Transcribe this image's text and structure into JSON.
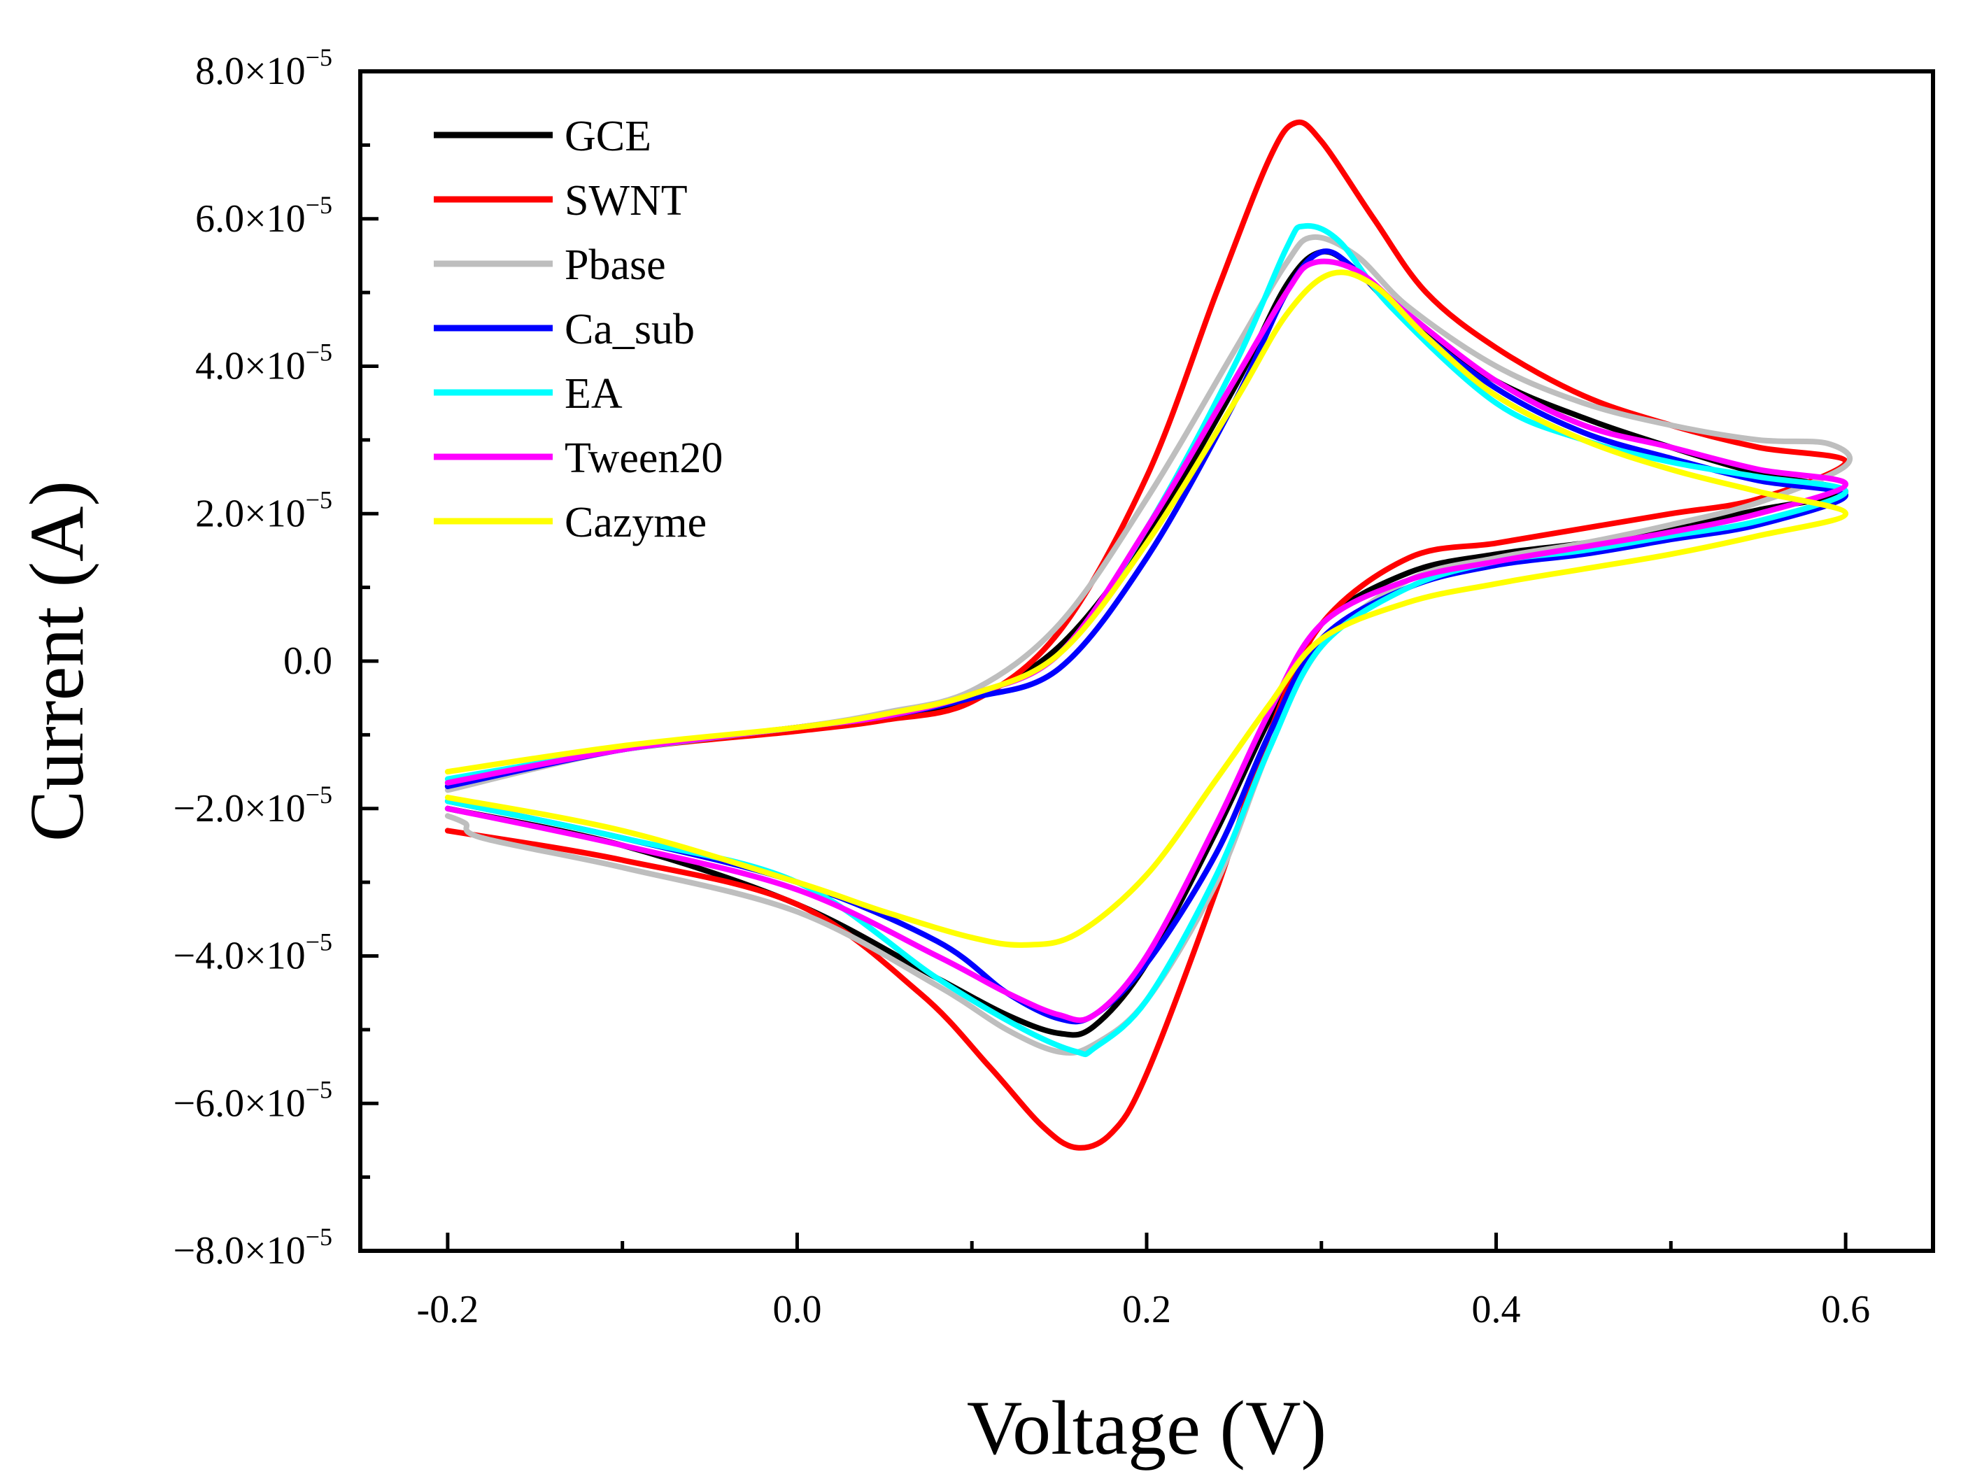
{
  "chart_data": {
    "type": "line",
    "title": "",
    "xlabel": "Voltage (V)",
    "ylabel": "Current (A)",
    "xlim": [
      -0.25,
      0.65
    ],
    "ylim": [
      -8e-05,
      8e-05
    ],
    "legend_position": "top-left",
    "x_ticks": [
      {
        "value": -0.2,
        "label": "-0.2"
      },
      {
        "value": 0.0,
        "label": "0.0"
      },
      {
        "value": 0.2,
        "label": "0.2"
      },
      {
        "value": 0.4,
        "label": "0.4"
      },
      {
        "value": 0.6,
        "label": "0.6"
      }
    ],
    "y_ticks": [
      {
        "value": 8e-05,
        "label": "8.0×10",
        "exp": "−5"
      },
      {
        "value": 6e-05,
        "label": "6.0×10",
        "exp": "−5"
      },
      {
        "value": 4e-05,
        "label": "4.0×10",
        "exp": "−5"
      },
      {
        "value": 2e-05,
        "label": "2.0×10",
        "exp": "−5"
      },
      {
        "value": 0.0,
        "label": "0.0",
        "exp": ""
      },
      {
        "value": -2e-05,
        "label": "−2.0×10",
        "exp": "−5"
      },
      {
        "value": -4e-05,
        "label": "−4.0×10",
        "exp": "−5"
      },
      {
        "value": -6e-05,
        "label": "−6.0×10",
        "exp": "−5"
      },
      {
        "value": -8e-05,
        "label": "−8.0×10",
        "exp": "−5"
      }
    ],
    "series": [
      {
        "name": "GCE",
        "color": "#000000",
        "forward": [
          [
            -0.2,
            -1.7
          ],
          [
            -0.1,
            -1.2
          ],
          [
            0.0,
            -0.9
          ],
          [
            0.05,
            -0.75
          ],
          [
            0.1,
            -0.5
          ],
          [
            0.15,
            0.2
          ],
          [
            0.2,
            1.7
          ],
          [
            0.25,
            3.7
          ],
          [
            0.28,
            5.1
          ],
          [
            0.3,
            5.55
          ],
          [
            0.32,
            5.3
          ],
          [
            0.35,
            4.6
          ],
          [
            0.4,
            3.8
          ],
          [
            0.45,
            3.3
          ],
          [
            0.5,
            2.9
          ],
          [
            0.55,
            2.55
          ],
          [
            0.6,
            2.3
          ]
        ],
        "reverse": [
          [
            0.6,
            2.3
          ],
          [
            0.55,
            2.05
          ],
          [
            0.5,
            1.8
          ],
          [
            0.45,
            1.6
          ],
          [
            0.4,
            1.45
          ],
          [
            0.35,
            1.2
          ],
          [
            0.3,
            0.5
          ],
          [
            0.27,
            -0.8
          ],
          [
            0.24,
            -2.3
          ],
          [
            0.2,
            -4.1
          ],
          [
            0.17,
            -4.95
          ],
          [
            0.15,
            -5.05
          ],
          [
            0.12,
            -4.8
          ],
          [
            0.08,
            -4.3
          ],
          [
            0.0,
            -3.3
          ],
          [
            -0.1,
            -2.5
          ],
          [
            -0.2,
            -2.0
          ]
        ]
      },
      {
        "name": "SWNT",
        "color": "#ff0000",
        "forward": [
          [
            -0.2,
            -1.65
          ],
          [
            -0.1,
            -1.2
          ],
          [
            0.0,
            -0.95
          ],
          [
            0.05,
            -0.8
          ],
          [
            0.1,
            -0.55
          ],
          [
            0.15,
            0.4
          ],
          [
            0.2,
            2.5
          ],
          [
            0.24,
            5.0
          ],
          [
            0.27,
            6.8
          ],
          [
            0.285,
            7.3
          ],
          [
            0.3,
            7.05
          ],
          [
            0.33,
            6.0
          ],
          [
            0.36,
            5.0
          ],
          [
            0.4,
            4.25
          ],
          [
            0.45,
            3.6
          ],
          [
            0.5,
            3.2
          ],
          [
            0.55,
            2.9
          ],
          [
            0.6,
            2.7
          ]
        ],
        "reverse": [
          [
            0.6,
            2.55
          ],
          [
            0.55,
            2.2
          ],
          [
            0.5,
            2.0
          ],
          [
            0.45,
            1.8
          ],
          [
            0.4,
            1.6
          ],
          [
            0.35,
            1.4
          ],
          [
            0.3,
            0.5
          ],
          [
            0.27,
            -1.0
          ],
          [
            0.24,
            -3.1
          ],
          [
            0.2,
            -5.6
          ],
          [
            0.18,
            -6.4
          ],
          [
            0.16,
            -6.6
          ],
          [
            0.14,
            -6.3
          ],
          [
            0.11,
            -5.5
          ],
          [
            0.07,
            -4.5
          ],
          [
            0.0,
            -3.3
          ],
          [
            -0.1,
            -2.7
          ],
          [
            -0.2,
            -2.3
          ]
        ]
      },
      {
        "name": "Pbase",
        "color": "#bebebe",
        "forward": [
          [
            -0.2,
            -1.75
          ],
          [
            -0.1,
            -1.2
          ],
          [
            0.0,
            -0.9
          ],
          [
            0.05,
            -0.7
          ],
          [
            0.1,
            -0.4
          ],
          [
            0.15,
            0.5
          ],
          [
            0.2,
            2.2
          ],
          [
            0.25,
            4.2
          ],
          [
            0.28,
            5.4
          ],
          [
            0.295,
            5.75
          ],
          [
            0.32,
            5.5
          ],
          [
            0.35,
            4.8
          ],
          [
            0.4,
            4.0
          ],
          [
            0.45,
            3.5
          ],
          [
            0.5,
            3.2
          ],
          [
            0.55,
            3.0
          ],
          [
            0.59,
            2.95
          ],
          [
            0.6,
            2.65
          ]
        ],
        "reverse": [
          [
            0.6,
            2.65
          ],
          [
            0.55,
            2.15
          ],
          [
            0.5,
            1.85
          ],
          [
            0.45,
            1.6
          ],
          [
            0.4,
            1.4
          ],
          [
            0.35,
            1.1
          ],
          [
            0.3,
            0.2
          ],
          [
            0.27,
            -1.2
          ],
          [
            0.24,
            -3.0
          ],
          [
            0.2,
            -4.6
          ],
          [
            0.17,
            -5.2
          ],
          [
            0.15,
            -5.3
          ],
          [
            0.12,
            -5.0
          ],
          [
            0.08,
            -4.4
          ],
          [
            0.0,
            -3.4
          ],
          [
            -0.1,
            -2.8
          ],
          [
            -0.18,
            -2.4
          ],
          [
            -0.19,
            -2.2
          ],
          [
            -0.2,
            -2.1
          ]
        ]
      },
      {
        "name": "Ca_sub",
        "color": "#0000ff",
        "forward": [
          [
            -0.2,
            -1.7
          ],
          [
            -0.1,
            -1.2
          ],
          [
            0.0,
            -0.9
          ],
          [
            0.05,
            -0.75
          ],
          [
            0.1,
            -0.5
          ],
          [
            0.15,
            -0.1
          ],
          [
            0.2,
            1.4
          ],
          [
            0.25,
            3.5
          ],
          [
            0.28,
            5.0
          ],
          [
            0.3,
            5.55
          ],
          [
            0.32,
            5.3
          ],
          [
            0.35,
            4.6
          ],
          [
            0.4,
            3.7
          ],
          [
            0.45,
            3.1
          ],
          [
            0.5,
            2.75
          ],
          [
            0.55,
            2.45
          ],
          [
            0.6,
            2.25
          ]
        ],
        "reverse": [
          [
            0.6,
            2.1
          ],
          [
            0.55,
            1.85
          ],
          [
            0.5,
            1.65
          ],
          [
            0.45,
            1.45
          ],
          [
            0.4,
            1.3
          ],
          [
            0.35,
            1.0
          ],
          [
            0.3,
            0.3
          ],
          [
            0.27,
            -1.0
          ],
          [
            0.24,
            -2.6
          ],
          [
            0.2,
            -4.1
          ],
          [
            0.17,
            -4.8
          ],
          [
            0.15,
            -4.85
          ],
          [
            0.12,
            -4.5
          ],
          [
            0.08,
            -3.8
          ],
          [
            0.0,
            -3.0
          ],
          [
            -0.1,
            -2.4
          ],
          [
            -0.2,
            -1.9
          ]
        ]
      },
      {
        "name": "EA",
        "color": "#00ffff",
        "forward": [
          [
            -0.2,
            -1.6
          ],
          [
            -0.1,
            -1.2
          ],
          [
            0.0,
            -0.9
          ],
          [
            0.05,
            -0.75
          ],
          [
            0.1,
            -0.45
          ],
          [
            0.15,
            0.1
          ],
          [
            0.2,
            1.8
          ],
          [
            0.25,
            4.0
          ],
          [
            0.28,
            5.6
          ],
          [
            0.29,
            5.9
          ],
          [
            0.31,
            5.7
          ],
          [
            0.34,
            4.8
          ],
          [
            0.4,
            3.5
          ],
          [
            0.45,
            3.0
          ],
          [
            0.5,
            2.7
          ],
          [
            0.55,
            2.5
          ],
          [
            0.6,
            2.3
          ]
        ],
        "reverse": [
          [
            0.6,
            2.15
          ],
          [
            0.55,
            1.9
          ],
          [
            0.5,
            1.7
          ],
          [
            0.45,
            1.5
          ],
          [
            0.4,
            1.35
          ],
          [
            0.35,
            1.0
          ],
          [
            0.3,
            0.2
          ],
          [
            0.27,
            -1.2
          ],
          [
            0.24,
            -2.9
          ],
          [
            0.2,
            -4.6
          ],
          [
            0.17,
            -5.25
          ],
          [
            0.16,
            -5.3
          ],
          [
            0.13,
            -5.0
          ],
          [
            0.08,
            -4.3
          ],
          [
            0.0,
            -3.0
          ],
          [
            -0.1,
            -2.4
          ],
          [
            -0.2,
            -1.9
          ]
        ]
      },
      {
        "name": "Tween20",
        "color": "#ff00ff",
        "forward": [
          [
            -0.2,
            -1.65
          ],
          [
            -0.1,
            -1.2
          ],
          [
            0.0,
            -0.9
          ],
          [
            0.05,
            -0.75
          ],
          [
            0.1,
            -0.45
          ],
          [
            0.15,
            0.1
          ],
          [
            0.2,
            1.8
          ],
          [
            0.25,
            3.8
          ],
          [
            0.28,
            5.0
          ],
          [
            0.295,
            5.4
          ],
          [
            0.32,
            5.3
          ],
          [
            0.35,
            4.7
          ],
          [
            0.4,
            3.8
          ],
          [
            0.45,
            3.2
          ],
          [
            0.5,
            2.9
          ],
          [
            0.55,
            2.6
          ],
          [
            0.6,
            2.4
          ]
        ],
        "reverse": [
          [
            0.6,
            2.4
          ],
          [
            0.55,
            2.0
          ],
          [
            0.5,
            1.75
          ],
          [
            0.45,
            1.55
          ],
          [
            0.4,
            1.35
          ],
          [
            0.35,
            1.1
          ],
          [
            0.3,
            0.5
          ],
          [
            0.27,
            -0.7
          ],
          [
            0.24,
            -2.2
          ],
          [
            0.2,
            -4.0
          ],
          [
            0.17,
            -4.8
          ],
          [
            0.15,
            -4.8
          ],
          [
            0.12,
            -4.5
          ],
          [
            0.08,
            -4.0
          ],
          [
            0.0,
            -3.1
          ],
          [
            -0.1,
            -2.5
          ],
          [
            -0.2,
            -2.0
          ]
        ]
      },
      {
        "name": "Cazyme",
        "color": "#ffff00",
        "forward": [
          [
            -0.2,
            -1.5
          ],
          [
            -0.1,
            -1.15
          ],
          [
            0.0,
            -0.9
          ],
          [
            0.05,
            -0.72
          ],
          [
            0.1,
            -0.45
          ],
          [
            0.15,
            0.1
          ],
          [
            0.2,
            1.6
          ],
          [
            0.25,
            3.5
          ],
          [
            0.28,
            4.7
          ],
          [
            0.305,
            5.25
          ],
          [
            0.33,
            5.1
          ],
          [
            0.36,
            4.4
          ],
          [
            0.4,
            3.6
          ],
          [
            0.45,
            3.0
          ],
          [
            0.5,
            2.6
          ],
          [
            0.55,
            2.3
          ],
          [
            0.6,
            2.0
          ]
        ],
        "reverse": [
          [
            0.6,
            2.0
          ],
          [
            0.55,
            1.7
          ],
          [
            0.5,
            1.45
          ],
          [
            0.45,
            1.25
          ],
          [
            0.4,
            1.05
          ],
          [
            0.35,
            0.8
          ],
          [
            0.3,
            0.3
          ],
          [
            0.27,
            -0.6
          ],
          [
            0.24,
            -1.6
          ],
          [
            0.2,
            -2.9
          ],
          [
            0.16,
            -3.7
          ],
          [
            0.13,
            -3.85
          ],
          [
            0.1,
            -3.75
          ],
          [
            0.05,
            -3.4
          ],
          [
            0.0,
            -3.0
          ],
          [
            -0.1,
            -2.3
          ],
          [
            -0.2,
            -1.85
          ]
        ]
      }
    ]
  }
}
